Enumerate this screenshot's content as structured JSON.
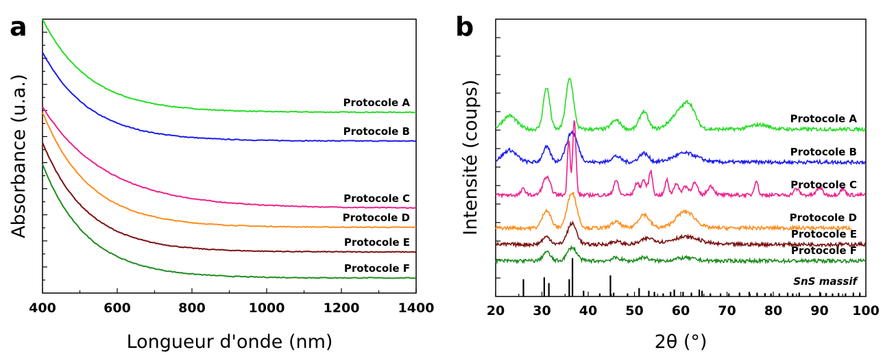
{
  "chart_data": [
    {
      "panel": "a",
      "type": "line",
      "xlabel": "Longueur d'onde (nm)",
      "ylabel": "Absorbance (u.a.)",
      "xlim": [
        400,
        1400
      ],
      "xticks": [
        "400",
        "600",
        "800",
        "1000",
        "1200",
        "1400"
      ],
      "y_tick_labels": false,
      "series": [
        {
          "name": "Protocole A",
          "color": "#22dd22",
          "start": 1.0,
          "plateau": 0.66,
          "decay": 125
        },
        {
          "name": "Protocole B",
          "color": "#1a1aee",
          "start": 0.88,
          "plateau": 0.555,
          "decay": 125
        },
        {
          "name": "Protocole C",
          "color": "#ee1f8c",
          "start": 0.68,
          "plateau": 0.31,
          "decay": 170
        },
        {
          "name": "Protocole D",
          "color": "#ff8c1a",
          "start": 0.66,
          "plateau": 0.24,
          "decay": 125
        },
        {
          "name": "Protocole E",
          "color": "#7a0f0f",
          "start": 0.55,
          "plateau": 0.15,
          "decay": 120
        },
        {
          "name": "Protocole F",
          "color": "#1e8c1e",
          "start": 0.47,
          "plateau": 0.055,
          "decay": 120
        }
      ]
    },
    {
      "panel": "b",
      "type": "line",
      "xlabel": "2θ (°)",
      "ylabel": "Intensité (coups)",
      "xlim": [
        20,
        100
      ],
      "xticks": [
        "20",
        "30",
        "40",
        "50",
        "60",
        "70",
        "80",
        "90",
        "100"
      ],
      "y_tick_labels": false,
      "series": [
        {
          "name": "Protocole A",
          "color": "#22dd22",
          "xmax": 100,
          "baseline": 0.44,
          "peaks": [
            [
              23,
              0.045,
              1.5
            ],
            [
              31,
              0.14,
              0.7
            ],
            [
              36,
              0.17,
              0.8
            ],
            [
              46,
              0.03,
              1.0
            ],
            [
              52,
              0.06,
              0.9
            ],
            [
              60,
              0.06,
              2.0
            ],
            [
              62,
              0.05,
              1.2
            ],
            [
              77,
              0.015,
              2.0
            ]
          ]
        },
        {
          "name": "Protocole B",
          "color": "#1a1aee",
          "xmax": 100,
          "baseline": 0.33,
          "peaks": [
            [
              23,
              0.04,
              1.5
            ],
            [
              31,
              0.05,
              0.8
            ],
            [
              36.5,
              0.1,
              1.2
            ],
            [
              46,
              0.02,
              1.0
            ],
            [
              52,
              0.03,
              1.0
            ],
            [
              61,
              0.03,
              2.5
            ]
          ]
        },
        {
          "name": "Protocole C",
          "color": "#ee1f8c",
          "xmax": 100,
          "baseline": 0.22,
          "peaks": [
            [
              26,
              0.02,
              0.5
            ],
            [
              31,
              0.06,
              0.8
            ],
            [
              35.8,
              0.19,
              0.3
            ],
            [
              37,
              0.25,
              0.35
            ],
            [
              46,
              0.05,
              0.5
            ],
            [
              50.5,
              0.04,
              0.5
            ],
            [
              52,
              0.05,
              0.5
            ],
            [
              53.5,
              0.08,
              0.4
            ],
            [
              57,
              0.05,
              0.4
            ],
            [
              59,
              0.04,
              0.5
            ],
            [
              61,
              0.03,
              0.6
            ],
            [
              63,
              0.04,
              0.6
            ],
            [
              66.5,
              0.03,
              0.7
            ],
            [
              76.3,
              0.05,
              0.4
            ],
            [
              85,
              0.02,
              0.6
            ],
            [
              90,
              0.025,
              0.6
            ],
            [
              95,
              0.02,
              0.6
            ]
          ]
        },
        {
          "name": "Protocole D",
          "color": "#ff8c1a",
          "xmax": 97,
          "baseline": 0.11,
          "peaks": [
            [
              31,
              0.06,
              0.9
            ],
            [
              36.5,
              0.12,
              1.0
            ],
            [
              46,
              0.02,
              1.0
            ],
            [
              52,
              0.045,
              1.2
            ],
            [
              61,
              0.055,
              2.0
            ]
          ]
        },
        {
          "name": "Protocole E",
          "color": "#7a0f0f",
          "xmax": 100,
          "baseline": 0.055,
          "peaks": [
            [
              31,
              0.025,
              0.9
            ],
            [
              36.5,
              0.07,
              1.0
            ],
            [
              46,
              0.01,
              1.0
            ],
            [
              53,
              0.02,
              1.5
            ],
            [
              61,
              0.025,
              3.0
            ]
          ]
        },
        {
          "name": "Protocole F",
          "color": "#1e8c1e",
          "xmax": 100,
          "baseline": 0.0,
          "peaks": [
            [
              31,
              0.03,
              0.8
            ],
            [
              36.5,
              0.045,
              1.0
            ],
            [
              46,
              0.01,
              1.0
            ],
            [
              52,
              0.012,
              1.0
            ],
            [
              61,
              0.01,
              2.0
            ]
          ]
        }
      ],
      "reference": {
        "name": "SnS massif",
        "color": "#000000",
        "lines": [
          [
            26.0,
            0.45
          ],
          [
            30.5,
            0.5
          ],
          [
            31.5,
            0.35
          ],
          [
            35.9,
            0.45
          ],
          [
            36.6,
            1.0
          ],
          [
            39.0,
            0.15
          ],
          [
            42.5,
            0.08
          ],
          [
            44.8,
            0.55
          ],
          [
            45.5,
            0.1
          ],
          [
            48.5,
            0.08
          ],
          [
            51.0,
            0.22
          ],
          [
            53.1,
            0.15
          ],
          [
            54.3,
            0.12
          ],
          [
            56.2,
            0.08
          ],
          [
            57.8,
            0.12
          ],
          [
            58.6,
            0.18
          ],
          [
            60.5,
            0.12
          ],
          [
            62.3,
            0.1
          ],
          [
            64.0,
            0.18
          ],
          [
            64.6,
            0.15
          ],
          [
            66.4,
            0.08
          ],
          [
            68.6,
            0.08
          ],
          [
            70.4,
            0.08
          ],
          [
            72.7,
            0.1
          ],
          [
            74.8,
            0.12
          ],
          [
            76.5,
            0.1
          ],
          [
            78.2,
            0.09
          ],
          [
            79.5,
            0.08
          ],
          [
            81.3,
            0.08
          ],
          [
            83.1,
            0.1
          ],
          [
            84.2,
            0.08
          ],
          [
            85.6,
            0.1
          ],
          [
            87.9,
            0.08
          ],
          [
            90.2,
            0.1
          ],
          [
            91.4,
            0.09
          ],
          [
            92.8,
            0.08
          ],
          [
            94.1,
            0.09
          ],
          [
            95.6,
            0.08
          ],
          [
            97.3,
            0.1
          ],
          [
            98.7,
            0.1
          ]
        ]
      }
    }
  ]
}
